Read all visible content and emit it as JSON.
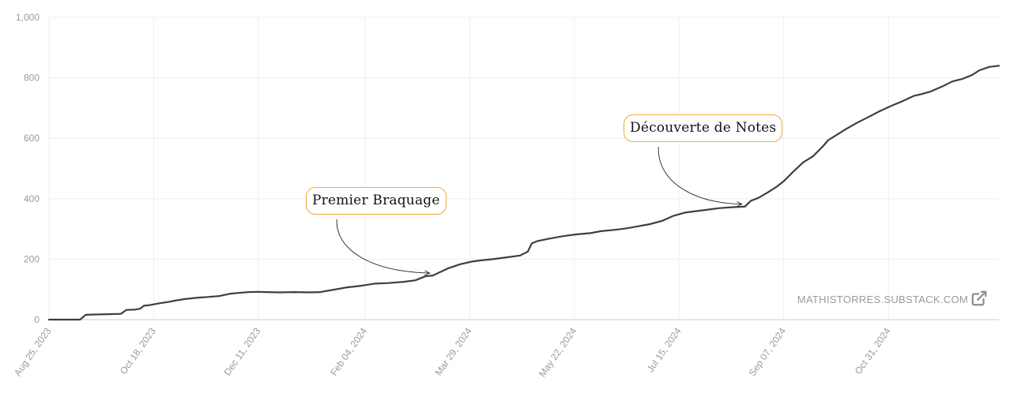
{
  "chart_data": {
    "type": "line",
    "x_type": "date",
    "xlim": [
      "2023-08-25",
      "2024-12-27"
    ],
    "ylim": [
      0,
      1000
    ],
    "yticks": [
      0,
      200,
      400,
      600,
      800,
      1000
    ],
    "ytick_labels": [
      "0",
      "200",
      "400",
      "600",
      "800",
      "1,000"
    ],
    "xticks": [
      "2023-08-25",
      "2023-10-18",
      "2023-12-11",
      "2024-02-04",
      "2024-03-29",
      "2024-05-22",
      "2024-07-15",
      "2024-09-07",
      "2024-10-31"
    ],
    "xtick_labels": [
      "Aug 25, 2023",
      "Oct 18, 2023",
      "Dec 11, 2023",
      "Feb 04, 2024",
      "Mar 29, 2024",
      "May 22, 2024",
      "Jul 15, 2024",
      "Sep 07, 2024",
      "Oct 31, 2024"
    ],
    "grid": true,
    "series": [
      {
        "color": "#3f3f3f",
        "points": [
          [
            "2023-08-25",
            0
          ],
          [
            "2023-09-10",
            0
          ],
          [
            "2023-09-13",
            16
          ],
          [
            "2023-09-18",
            17
          ],
          [
            "2023-09-25",
            18
          ],
          [
            "2023-10-01",
            19
          ],
          [
            "2023-10-04",
            32
          ],
          [
            "2023-10-08",
            33
          ],
          [
            "2023-10-11",
            36
          ],
          [
            "2023-10-13",
            46
          ],
          [
            "2023-10-16",
            48
          ],
          [
            "2023-10-21",
            54
          ],
          [
            "2023-10-26",
            59
          ],
          [
            "2023-10-30",
            64
          ],
          [
            "2023-11-03",
            68
          ],
          [
            "2023-11-09",
            72
          ],
          [
            "2023-11-15",
            75
          ],
          [
            "2023-11-21",
            78
          ],
          [
            "2023-11-26",
            85
          ],
          [
            "2023-11-30",
            88
          ],
          [
            "2023-12-06",
            91
          ],
          [
            "2023-12-11",
            92
          ],
          [
            "2023-12-15",
            91
          ],
          [
            "2023-12-22",
            90
          ],
          [
            "2023-12-30",
            91
          ],
          [
            "2024-01-06",
            90
          ],
          [
            "2024-01-12",
            91
          ],
          [
            "2024-01-18",
            98
          ],
          [
            "2024-01-25",
            106
          ],
          [
            "2024-02-02",
            112
          ],
          [
            "2024-02-09",
            119
          ],
          [
            "2024-02-16",
            121
          ],
          [
            "2024-02-24",
            125
          ],
          [
            "2024-03-01",
            130
          ],
          [
            "2024-03-06",
            143
          ],
          [
            "2024-03-10",
            146
          ],
          [
            "2024-03-14",
            158
          ],
          [
            "2024-03-18",
            170
          ],
          [
            "2024-03-24",
            183
          ],
          [
            "2024-03-30",
            192
          ],
          [
            "2024-04-04",
            196
          ],
          [
            "2024-04-10",
            200
          ],
          [
            "2024-04-17",
            206
          ],
          [
            "2024-04-24",
            212
          ],
          [
            "2024-04-28",
            225
          ],
          [
            "2024-04-30",
            252
          ],
          [
            "2024-05-03",
            260
          ],
          [
            "2024-05-09",
            268
          ],
          [
            "2024-05-16",
            276
          ],
          [
            "2024-05-23",
            282
          ],
          [
            "2024-05-30",
            286
          ],
          [
            "2024-06-05",
            293
          ],
          [
            "2024-06-12",
            297
          ],
          [
            "2024-06-18",
            302
          ],
          [
            "2024-06-24",
            309
          ],
          [
            "2024-06-30",
            316
          ],
          [
            "2024-07-06",
            326
          ],
          [
            "2024-07-12",
            343
          ],
          [
            "2024-07-18",
            354
          ],
          [
            "2024-07-24",
            359
          ],
          [
            "2024-07-30",
            364
          ],
          [
            "2024-08-05",
            369
          ],
          [
            "2024-08-12",
            372
          ],
          [
            "2024-08-18",
            374
          ],
          [
            "2024-08-21",
            393
          ],
          [
            "2024-08-25",
            403
          ],
          [
            "2024-08-30",
            422
          ],
          [
            "2024-09-03",
            438
          ],
          [
            "2024-09-07",
            458
          ],
          [
            "2024-09-12",
            490
          ],
          [
            "2024-09-17",
            520
          ],
          [
            "2024-09-22",
            540
          ],
          [
            "2024-09-27",
            572
          ],
          [
            "2024-09-30",
            594
          ],
          [
            "2024-10-04",
            610
          ],
          [
            "2024-10-09",
            630
          ],
          [
            "2024-10-15",
            652
          ],
          [
            "2024-10-20",
            668
          ],
          [
            "2024-10-26",
            688
          ],
          [
            "2024-11-01",
            706
          ],
          [
            "2024-11-07",
            722
          ],
          [
            "2024-11-13",
            740
          ],
          [
            "2024-11-17",
            746
          ],
          [
            "2024-11-22",
            755
          ],
          [
            "2024-11-28",
            772
          ],
          [
            "2024-12-03",
            788
          ],
          [
            "2024-12-08",
            796
          ],
          [
            "2024-12-13",
            809
          ],
          [
            "2024-12-17",
            825
          ],
          [
            "2024-12-22",
            836
          ],
          [
            "2024-12-27",
            840
          ]
        ]
      }
    ],
    "annotations": [
      {
        "text": "Premier Braquage",
        "x": "2024-03-10",
        "y": 146
      },
      {
        "text": "Découverte de Notes",
        "x": "2024-08-18",
        "y": 374
      }
    ]
  },
  "watermark": {
    "text": "MATHISTORRES.SUBSTACK.COM",
    "icon": "external-link-icon"
  },
  "colors": {
    "line": "#3f3f3f",
    "grid": "#eeeeee",
    "axis": "#cccccc",
    "tick_text": "#9a9a9a",
    "annotation_border": "#f0a83a"
  }
}
